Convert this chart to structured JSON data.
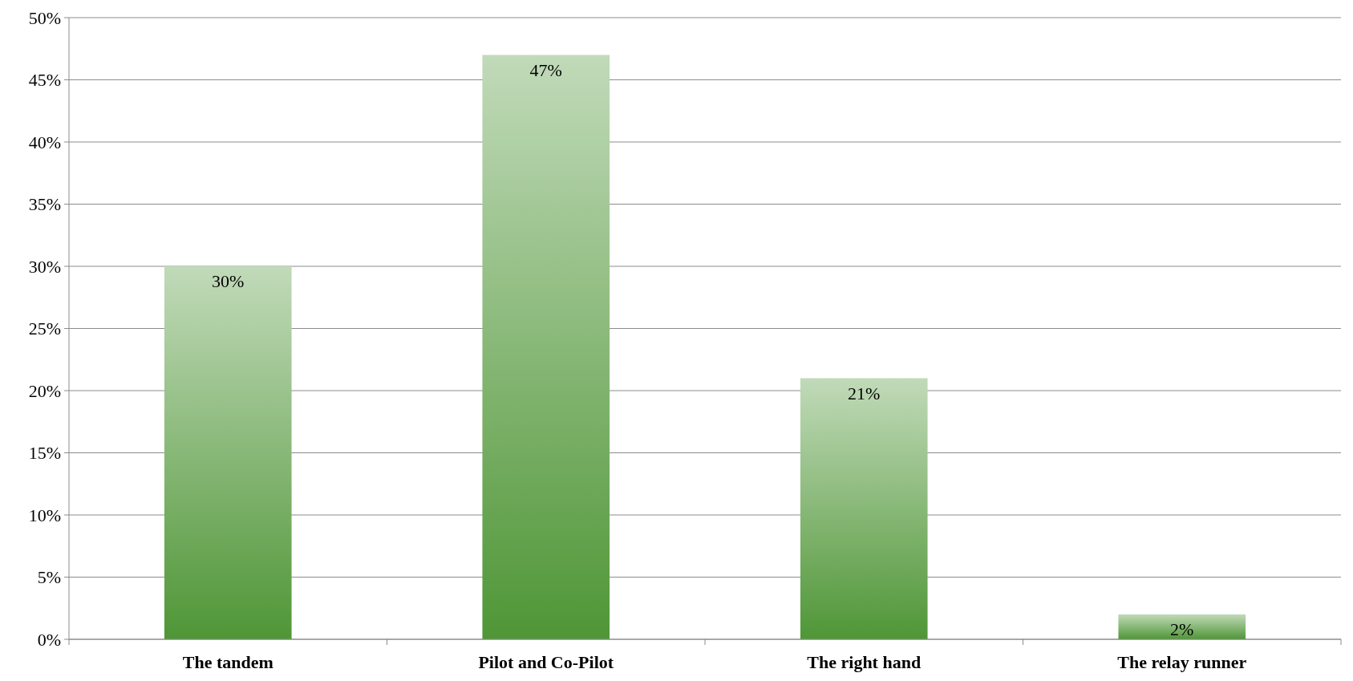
{
  "chart_data": {
    "type": "bar",
    "categories": [
      "The tandem",
      "Pilot and Co-Pilot",
      "The right hand",
      "The relay runner"
    ],
    "values": [
      30,
      47,
      21,
      2
    ],
    "value_labels": [
      "30%",
      "47%",
      "21%",
      "2%"
    ],
    "color": "#4f9636",
    "ylim": [
      0,
      50
    ],
    "yticks": [
      {
        "value": 0,
        "label": "0%"
      },
      {
        "value": 5,
        "label": "5%"
      },
      {
        "value": 10,
        "label": "10%"
      },
      {
        "value": 15,
        "label": "15%"
      },
      {
        "value": 20,
        "label": "20%"
      },
      {
        "value": 25,
        "label": "25%"
      },
      {
        "value": 30,
        "label": "30%"
      },
      {
        "value": 35,
        "label": "35%"
      },
      {
        "value": 40,
        "label": "40%"
      },
      {
        "value": 45,
        "label": "45%"
      },
      {
        "value": 50,
        "label": "50%"
      }
    ],
    "grid": "y"
  }
}
